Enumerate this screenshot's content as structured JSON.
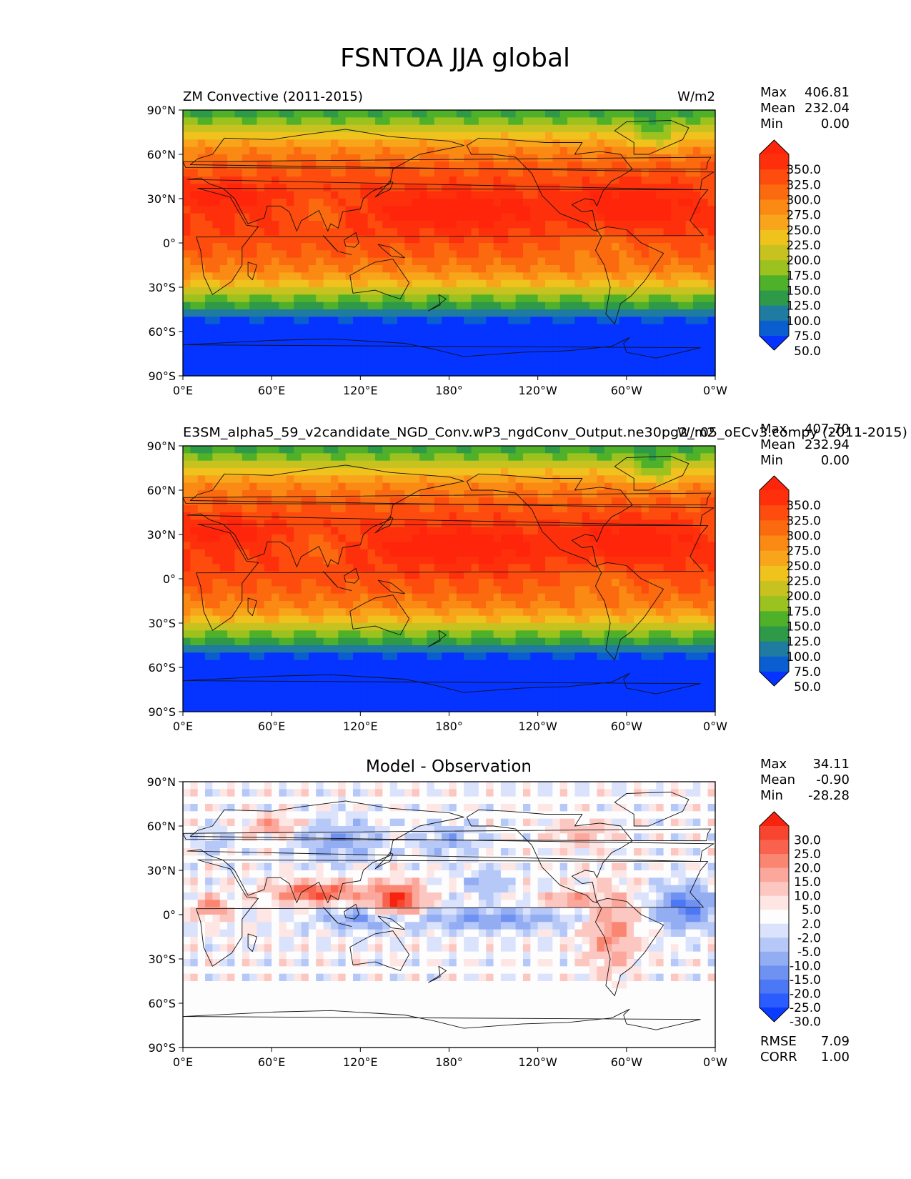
{
  "figure_title": "FSNTOA JJA global",
  "chart_data": [
    {
      "type": "heatmap",
      "title_left": "ZM Convective (2011-2015)",
      "title_right": "W/m2",
      "stats": {
        "max_label": "Max",
        "max": "406.81",
        "mean_label": "Mean",
        "mean": "232.04",
        "min_label": "Min",
        "min": "0.00"
      },
      "colorbar_levels": [
        "350.0",
        "325.0",
        "300.0",
        "275.0",
        "250.0",
        "225.0",
        "200.0",
        "175.0",
        "150.0",
        "125.0",
        "100.0",
        "75.0",
        "50.0"
      ],
      "colors": [
        "#0533ff",
        "#0b5ed0",
        "#1f7ba0",
        "#2e9a48",
        "#4fb12a",
        "#9bc21e",
        "#c7c21f",
        "#f0c21d",
        "#f8a51b",
        "#fb8a14",
        "#fc6a10",
        "#fd4c0d",
        "#fe300c",
        "#ff250b"
      ],
      "lat_ticks": [
        "90°N",
        "60°N",
        "30°N",
        "0°",
        "30°S",
        "60°S",
        "90°S"
      ],
      "lon_ticks": [
        "0°E",
        "60°E",
        "120°E",
        "180°",
        "120°W",
        "60°W",
        "0°W"
      ],
      "field": "fsntoa"
    },
    {
      "type": "heatmap",
      "title_left": "E3SM_alpha5_59_v2candidate_NGD_Conv.wP3_ngdConv_Output.ne30pg2_r05_oECv3.compy (2011-2015)",
      "title_right": "W/m2",
      "stats": {
        "max_label": "Max",
        "max": "407.70",
        "mean_label": "Mean",
        "mean": "232.94",
        "min_label": "Min",
        "min": "0.00"
      },
      "colorbar_levels": [
        "350.0",
        "325.0",
        "300.0",
        "275.0",
        "250.0",
        "225.0",
        "200.0",
        "175.0",
        "150.0",
        "125.0",
        "100.0",
        "75.0",
        "50.0"
      ],
      "colors": [
        "#0533ff",
        "#0b5ed0",
        "#1f7ba0",
        "#2e9a48",
        "#4fb12a",
        "#9bc21e",
        "#c7c21f",
        "#f0c21d",
        "#f8a51b",
        "#fb8a14",
        "#fc6a10",
        "#fd4c0d",
        "#fe300c",
        "#ff250b"
      ],
      "lat_ticks": [
        "90°N",
        "60°N",
        "30°N",
        "0°",
        "30°S",
        "60°S",
        "90°S"
      ],
      "lon_ticks": [
        "0°E",
        "60°E",
        "120°E",
        "180°",
        "120°W",
        "60°W",
        "0°W"
      ],
      "field": "fsntoa"
    },
    {
      "type": "heatmap",
      "title_center": "Model - Observation",
      "stats": {
        "max_label": "Max",
        "max": "34.11",
        "mean_label": "Mean",
        "mean": "-0.90",
        "min_label": "Min",
        "min": "-28.28"
      },
      "colorbar_levels": [
        "30.0",
        "25.0",
        "20.0",
        "15.0",
        "10.0",
        "5.0",
        "2.0",
        "-2.0",
        "-5.0",
        "-10.0",
        "-15.0",
        "-20.0",
        "-25.0",
        "-30.0"
      ],
      "colors": [
        "#0a3cff",
        "#2a5cff",
        "#4c78f5",
        "#6f92f2",
        "#93adf3",
        "#b6c8f8",
        "#dbe3fc",
        "#fdfdfd",
        "#fde6e3",
        "#fcc7c0",
        "#fba79b",
        "#fa8672",
        "#f9634e",
        "#f8452f",
        "#f7230f"
      ],
      "lat_ticks": [
        "90°N",
        "60°N",
        "30°N",
        "0°",
        "30°S",
        "60°S",
        "90°S"
      ],
      "lon_ticks": [
        "0°E",
        "60°E",
        "120°E",
        "180°",
        "120°W",
        "60°W",
        "0°W"
      ],
      "field": "diff",
      "rmse_label": "RMSE",
      "rmse": "7.09",
      "corr_label": "CORR",
      "corr": "1.00"
    }
  ]
}
